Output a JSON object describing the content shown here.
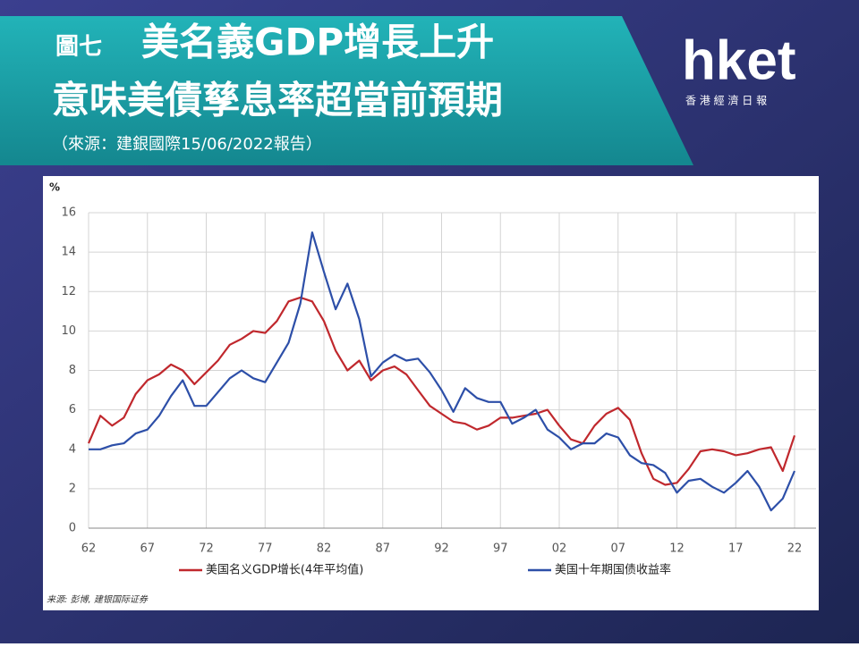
{
  "slide": {
    "figure_label": "圖七",
    "title_lines": [
      "美名義GDP增長上升",
      "意味美債孳息率超當前預期"
    ],
    "source": "（來源：建銀國際15/06/2022報告）",
    "logo": {
      "name": "hket",
      "tagline": "香 港 經 濟 日 報"
    }
  },
  "chart_data": {
    "type": "line",
    "y_unit": "%",
    "note": "来源: 彭博, 建银国际证券",
    "x": [
      1962,
      1963,
      1964,
      1965,
      1966,
      1967,
      1968,
      1969,
      1970,
      1971,
      1972,
      1973,
      1974,
      1975,
      1976,
      1977,
      1978,
      1979,
      1980,
      1981,
      1982,
      1983,
      1984,
      1985,
      1986,
      1987,
      1988,
      1989,
      1990,
      1991,
      1992,
      1993,
      1994,
      1995,
      1996,
      1997,
      1998,
      1999,
      2000,
      2001,
      2002,
      2003,
      2004,
      2005,
      2006,
      2007,
      2008,
      2009,
      2010,
      2011,
      2012,
      2013,
      2014,
      2015,
      2016,
      2017,
      2018,
      2019,
      2020,
      2021,
      2022
    ],
    "series": [
      {
        "name": "美国名义GDP增长(4年平均值)",
        "color": "#c0282d",
        "values": [
          4.3,
          5.7,
          5.2,
          5.6,
          6.8,
          7.5,
          7.8,
          8.3,
          8.0,
          7.3,
          7.9,
          8.5,
          9.3,
          9.6,
          10.0,
          9.9,
          10.5,
          11.5,
          11.7,
          11.5,
          10.5,
          9.0,
          8.0,
          8.5,
          7.5,
          8.0,
          8.2,
          7.8,
          7.0,
          6.2,
          5.8,
          5.4,
          5.3,
          5.0,
          5.2,
          5.6,
          5.6,
          5.7,
          5.8,
          6.0,
          5.2,
          4.5,
          4.3,
          5.2,
          5.8,
          6.1,
          5.5,
          3.8,
          2.5,
          2.2,
          2.3,
          3.0,
          3.9,
          4.0,
          3.9,
          3.7,
          3.8,
          4.0,
          4.1,
          2.9,
          4.7
        ]
      },
      {
        "name": "美国十年期国债收益率",
        "color": "#2d4fa8",
        "values": [
          4.0,
          4.0,
          4.2,
          4.3,
          4.8,
          5.0,
          5.7,
          6.7,
          7.5,
          6.2,
          6.2,
          6.9,
          7.6,
          8.0,
          7.6,
          7.4,
          8.4,
          9.4,
          11.4,
          15.0,
          13.0,
          11.1,
          12.4,
          10.6,
          7.7,
          8.4,
          8.8,
          8.5,
          8.6,
          7.9,
          7.0,
          5.9,
          7.1,
          6.6,
          6.4,
          6.4,
          5.3,
          5.6,
          6.0,
          5.0,
          4.6,
          4.0,
          4.3,
          4.3,
          4.8,
          4.6,
          3.7,
          3.3,
          3.2,
          2.8,
          1.8,
          2.4,
          2.5,
          2.1,
          1.8,
          2.3,
          2.9,
          2.1,
          0.9,
          1.5,
          2.9
        ]
      }
    ],
    "xlim": [
      1962,
      2022
    ],
    "xticks": [
      {
        "value": 1962,
        "label": "62"
      },
      {
        "value": 1967,
        "label": "67"
      },
      {
        "value": 1972,
        "label": "72"
      },
      {
        "value": 1977,
        "label": "77"
      },
      {
        "value": 1982,
        "label": "82"
      },
      {
        "value": 1987,
        "label": "87"
      },
      {
        "value": 1992,
        "label": "92"
      },
      {
        "value": 1997,
        "label": "97"
      },
      {
        "value": 2002,
        "label": "02"
      },
      {
        "value": 2007,
        "label": "07"
      },
      {
        "value": 2012,
        "label": "12"
      },
      {
        "value": 2017,
        "label": "17"
      },
      {
        "value": 2022,
        "label": "22"
      }
    ],
    "ylim": [
      0,
      16
    ],
    "yticks": [
      0,
      2,
      4,
      6,
      8,
      10,
      12,
      14,
      16
    ],
    "grid": true
  }
}
